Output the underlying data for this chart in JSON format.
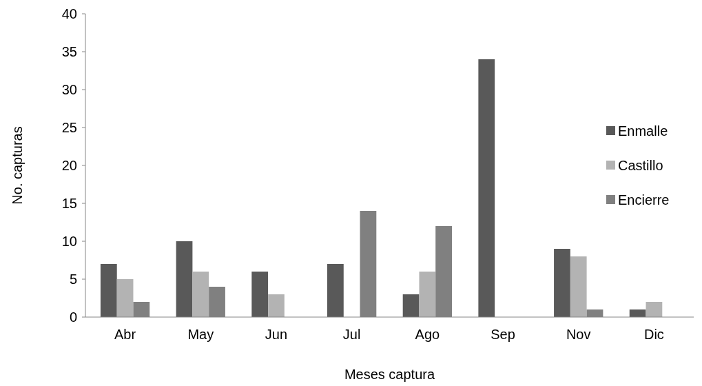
{
  "chart_data": {
    "type": "bar",
    "xlabel": "Meses captura",
    "ylabel": "No. capturas",
    "categories": [
      "Abr",
      "May",
      "Jun",
      "Jul",
      "Ago",
      "Sep",
      "Nov",
      "Dic"
    ],
    "series": [
      {
        "name": "Enmalle",
        "color": "#595959",
        "values": [
          7,
          10,
          6,
          7,
          3,
          34,
          9,
          1
        ]
      },
      {
        "name": "Castillo",
        "color": "#b3b3b3",
        "values": [
          5,
          6,
          3,
          0,
          6,
          0,
          8,
          2
        ]
      },
      {
        "name": "Encierre",
        "color": "#808080",
        "values": [
          2,
          4,
          0,
          14,
          12,
          0,
          1,
          0
        ]
      }
    ],
    "ylim": [
      0,
      40
    ],
    "yticks": [
      0,
      5,
      10,
      15,
      20,
      25,
      30,
      35,
      40
    ],
    "grid": false,
    "legend": "right"
  }
}
